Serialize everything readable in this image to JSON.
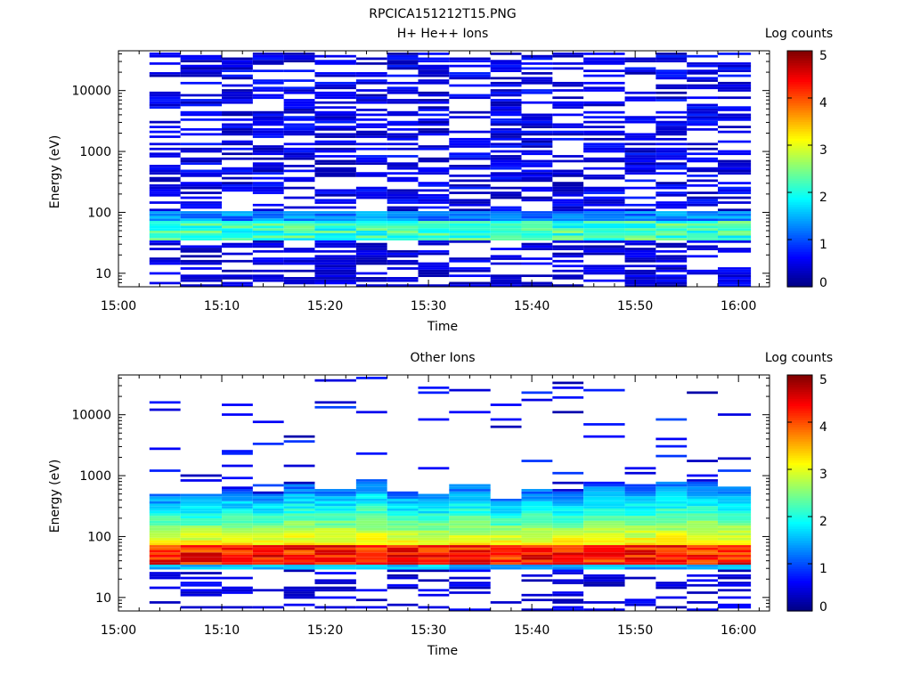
{
  "figure_title": "RPCICA151212T15.PNG",
  "colorscale": {
    "stops": [
      "#00007f",
      "#0000ff",
      "#0080ff",
      "#00ffff",
      "#80ff80",
      "#ffff00",
      "#ff8000",
      "#ff0000",
      "#7f0000"
    ]
  },
  "chart_data": [
    {
      "type": "heatmap",
      "title": "H+ He++ Ions",
      "xlabel": "Time",
      "ylabel": "Energy (eV)",
      "xlim": [
        "15:00",
        "16:03"
      ],
      "x_ticks": [
        "15:00",
        "15:10",
        "15:20",
        "15:30",
        "15:40",
        "15:50",
        "16:00"
      ],
      "ylim": [
        6,
        45000
      ],
      "yscale": "log",
      "y_ticks": [
        "10",
        "100",
        "1000",
        "10000"
      ],
      "colorbar": {
        "label": "Log counts",
        "range": [
          0,
          5
        ],
        "ticks": [
          "0",
          "1",
          "2",
          "3",
          "4",
          "5"
        ]
      },
      "time_bins": [
        "15:03",
        "15:06",
        "15:10",
        "15:13",
        "15:16",
        "15:19",
        "15:23",
        "15:26",
        "15:29",
        "15:32",
        "15:36",
        "15:39",
        "15:42",
        "15:45",
        "15:49",
        "15:52",
        "15:55",
        "15:58"
      ],
      "energy_range": [
        6,
        42000
      ],
      "energy_bins": 96,
      "description_levels": {
        "energy_below_30eV": 0.6,
        "energy_35_to_70eV_peak": 2.2,
        "energy_70_to_100eV": 1.3,
        "energy_above_100eV": 0.5
      }
    },
    {
      "type": "heatmap",
      "title": "Other Ions",
      "xlabel": "Time",
      "ylabel": "Energy (eV)",
      "xlim": [
        "15:00",
        "16:03"
      ],
      "x_ticks": [
        "15:00",
        "15:10",
        "15:20",
        "15:30",
        "15:40",
        "15:50",
        "16:00"
      ],
      "ylim": [
        6,
        45000
      ],
      "yscale": "log",
      "y_ticks": [
        "10",
        "100",
        "1000",
        "10000"
      ],
      "colorbar": {
        "label": "Log counts",
        "range": [
          0,
          5
        ],
        "ticks": [
          "0",
          "1",
          "2",
          "3",
          "4",
          "5"
        ]
      },
      "time_bins": [
        "15:03",
        "15:06",
        "15:10",
        "15:13",
        "15:16",
        "15:19",
        "15:23",
        "15:26",
        "15:29",
        "15:32",
        "15:36",
        "15:39",
        "15:42",
        "15:45",
        "15:49",
        "15:52",
        "15:55",
        "15:58"
      ],
      "energy_range": [
        6,
        42000
      ],
      "energy_bins": 96,
      "upper_cutoff_eV": [
        500,
        500,
        580,
        520,
        720,
        620,
        900,
        560,
        480,
        700,
        420,
        600,
        550,
        720,
        650,
        820,
        820,
        650,
        600
      ],
      "peak_energy_eV": [
        35,
        70
      ],
      "peak_level": 4.3
    }
  ]
}
